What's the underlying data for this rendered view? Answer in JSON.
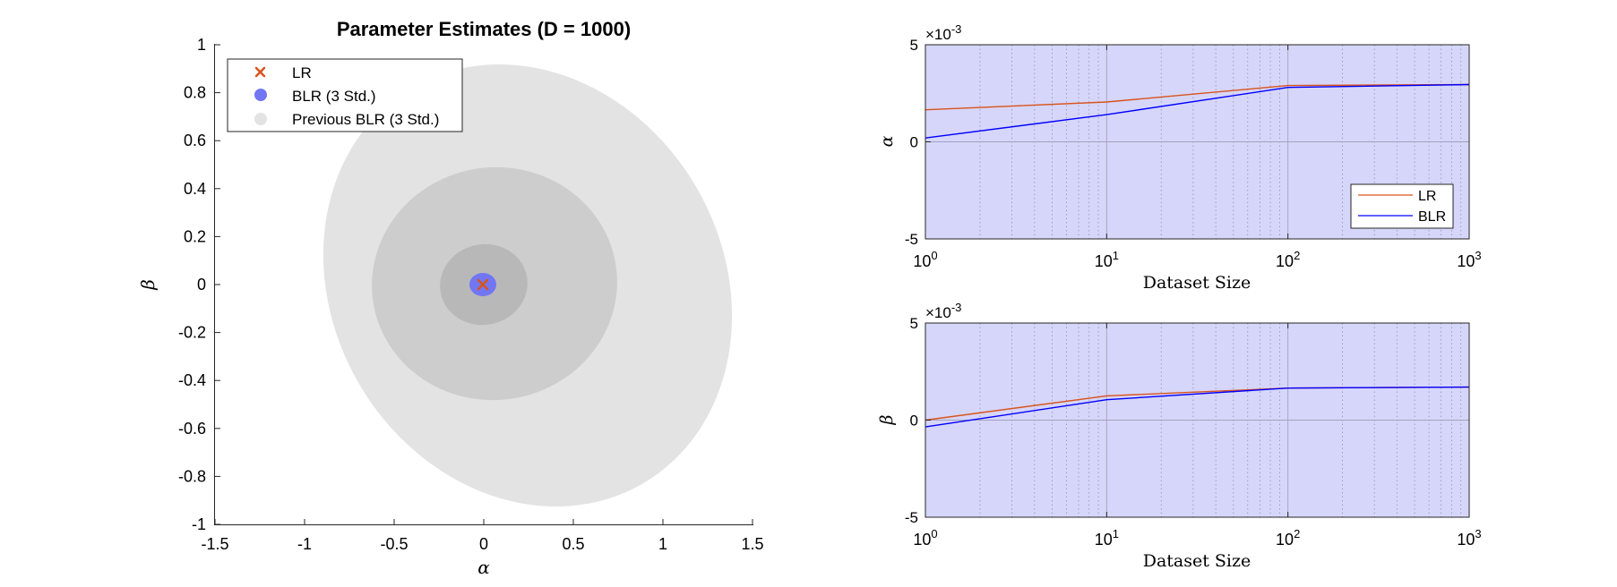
{
  "colors": {
    "lr": "#d95319",
    "blr": "#0000ff",
    "blr_fill": "#7376f2",
    "prev_blr": "#e3e3e3",
    "prev_blr_mid": "#cdcdcd",
    "prev_blr_inner": "#b8b8b8",
    "panel_bg": "#d6d6fb"
  },
  "chart_data": [
    {
      "type": "scatter",
      "title": "Parameter Estimates (D = 1000)",
      "xlabel": "α",
      "ylabel": "β",
      "xlim": [
        -1.5,
        1.5
      ],
      "ylim": [
        -1,
        1
      ],
      "x_ticks": [
        "-1.5",
        "-1",
        "-0.5",
        "0",
        "0.5",
        "1",
        "1.5"
      ],
      "y_ticks": [
        "1",
        "0.8",
        "0.6",
        "0.4",
        "0.2",
        "0",
        "-0.2",
        "-0.4",
        "-0.6",
        "-0.8",
        "-1"
      ],
      "grid": false,
      "legend": {
        "position": "top-left",
        "entries": [
          "LR",
          "BLR (3 Std.)",
          "Previous BLR (3 Std.)"
        ]
      },
      "lr_point": {
        "x": 0.003,
        "y": 0.002
      },
      "blr_region": {
        "cx": 0.0,
        "cy": 0.0,
        "rx": 0.08,
        "ry": 0.05
      },
      "previous_blr_regions": [
        {
          "cx": -0.02,
          "cy": -0.02,
          "rx": 0.24,
          "ry": 0.17,
          "tilt_deg": -12
        },
        {
          "cx": 0.05,
          "cy": 0.02,
          "rx": 0.68,
          "ry": 0.49,
          "tilt_deg": -8
        },
        {
          "cx": 0.12,
          "cy": -0.01,
          "rx": 1.07,
          "ry": 0.92,
          "tilt_deg": -30
        }
      ]
    },
    {
      "type": "line",
      "ylabel": "α",
      "xlabel": "Dataset Size",
      "xscale": "log",
      "xlim": [
        1,
        1000
      ],
      "ylim": [
        -5,
        5
      ],
      "y_exponent": "×10-3",
      "x_ticks": [
        "10^0",
        "10^1",
        "10^2",
        "10^3"
      ],
      "y_ticks": [
        "5",
        "0",
        "-5"
      ],
      "grid": true,
      "legend": {
        "position": "bottom-right",
        "entries": [
          "LR",
          "BLR"
        ]
      },
      "x": [
        1,
        10,
        100,
        1000
      ],
      "series": [
        {
          "name": "LR",
          "values": [
            1.65,
            2.05,
            2.9,
            2.95
          ]
        },
        {
          "name": "BLR",
          "values": [
            0.2,
            1.4,
            2.8,
            2.95
          ]
        }
      ]
    },
    {
      "type": "line",
      "ylabel": "β",
      "xlabel": "Dataset Size",
      "xscale": "log",
      "xlim": [
        1,
        1000
      ],
      "ylim": [
        -5,
        5
      ],
      "y_exponent": "×10-3",
      "x_ticks": [
        "10^0",
        "10^1",
        "10^2",
        "10^3"
      ],
      "y_ticks": [
        "5",
        "0",
        "-5"
      ],
      "grid": true,
      "x": [
        1,
        10,
        100,
        1000
      ],
      "series": [
        {
          "name": "LR",
          "values": [
            0.0,
            1.25,
            1.65,
            1.7
          ]
        },
        {
          "name": "BLR",
          "values": [
            -0.35,
            1.05,
            1.65,
            1.7
          ]
        }
      ]
    }
  ]
}
